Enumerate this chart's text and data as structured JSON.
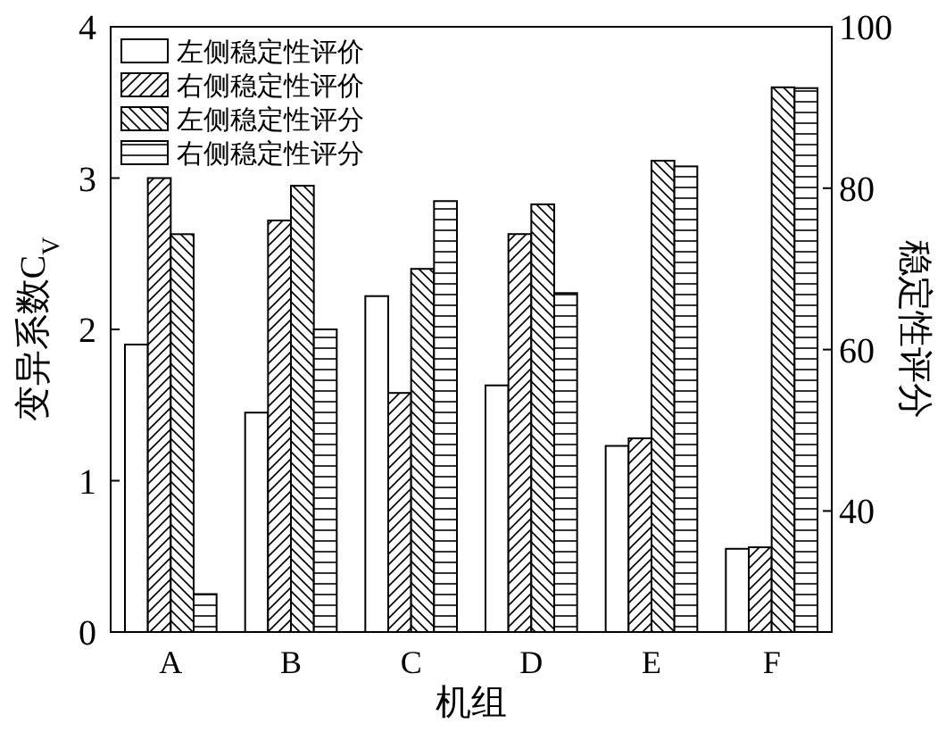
{
  "chart_data": {
    "type": "bar",
    "xlabel": "机组",
    "ylabel": "变异系数C$_{V}$",
    "y2label": "稳定性评分",
    "categories": [
      "A",
      "B",
      "C",
      "D",
      "E",
      "F"
    ],
    "series": [
      {
        "name": "左侧稳定性评价",
        "color": "#ffffff",
        "values": [
          1.9,
          1.45,
          2.22,
          1.63,
          1.23,
          0.55
        ]
      },
      {
        "name": "右侧稳定性评价",
        "color": "#000000",
        "values": [
          3.0,
          2.72,
          1.58,
          2.63,
          1.28,
          0.56
        ]
      },
      {
        "name": "左侧稳定性评分",
        "color": "#000000",
        "axis": "y2",
        "values": [
          74.3,
          80.3,
          70,
          78,
          83.4,
          92.5
        ]
      },
      {
        "name": "右侧稳定性评分",
        "color": "#000000",
        "axis": "y2",
        "values": [
          29.7,
          62.5,
          78.4,
          67,
          82.7,
          92.4
        ]
      }
    ],
    "ylim": [
      0,
      4
    ],
    "yticks": [
      0,
      1,
      2,
      3,
      4
    ],
    "y2lim": [
      25,
      100
    ],
    "y2ticks": [
      40,
      60,
      80,
      100
    ],
    "grid": false,
    "legend": "top left"
  }
}
